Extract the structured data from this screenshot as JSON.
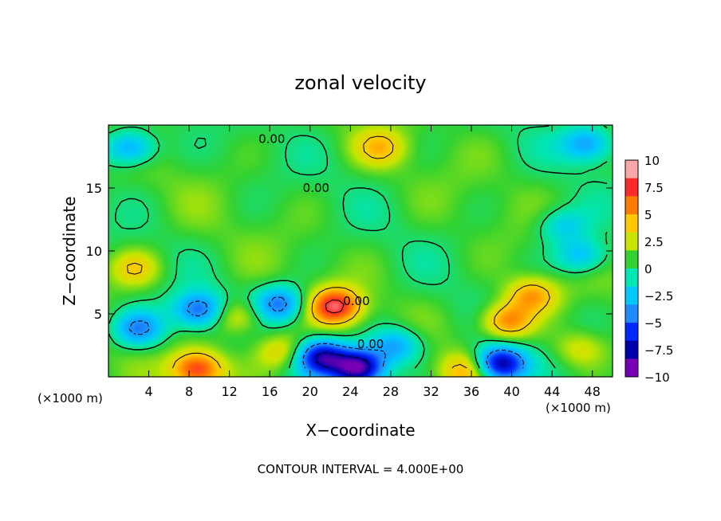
{
  "chart_data": {
    "type": "heatmap",
    "title": "zonal velocity",
    "xlabel": "X−coordinate",
    "ylabel": "Z−coordinate",
    "x_unit_left": "(×1000 m)",
    "x_unit_right": "(×1000 m)",
    "footer": "CONTOUR INTERVAL = 4.000E+00",
    "xlim": [
      0,
      50
    ],
    "ylim": [
      0,
      20
    ],
    "x_ticks": [
      4,
      8,
      12,
      16,
      20,
      24,
      28,
      32,
      36,
      40,
      44,
      48
    ],
    "x_tick_labels": [
      "4",
      "8",
      "12",
      "16",
      "20",
      "24",
      "28",
      "32",
      "36",
      "40",
      "44",
      "48"
    ],
    "y_ticks": [
      5,
      10,
      15
    ],
    "y_tick_labels": [
      "5",
      "10",
      "15"
    ],
    "colorbar": {
      "range": [
        -10,
        10
      ],
      "ticks": [
        10,
        7.5,
        5,
        2.5,
        0,
        -2.5,
        -5,
        -7.5,
        -10
      ],
      "labels": [
        "10",
        "7.5",
        "5",
        "2.5",
        "0",
        "−2.5",
        "−5",
        "−7.5",
        "−10"
      ],
      "colors": [
        "#f8a8a8",
        "#ff2a2a",
        "#ff7a00",
        "#ffc800",
        "#c8e600",
        "#32d232",
        "#00e6b4",
        "#00c8ff",
        "#1e8cff",
        "#0028ff",
        "#0000aa",
        "#7800b4"
      ]
    },
    "contour_labels": [
      {
        "text": "0.00",
        "x": 16.2,
        "y": 18.9
      },
      {
        "text": "0.00",
        "x": 20.6,
        "y": 15.0
      },
      {
        "text": "0.00",
        "x": 24.6,
        "y": 6.0
      },
      {
        "text": "0.00",
        "x": 26.0,
        "y": 2.6
      }
    ],
    "features": [
      {
        "label": "background",
        "x": 25,
        "y": 10,
        "value": 0.8
      },
      {
        "label": "max",
        "x": 22.5,
        "y": 5.6,
        "value": 8.5
      },
      {
        "label": "max",
        "x": 8.8,
        "y": 0.6,
        "value": 7.8
      },
      {
        "label": "max",
        "x": 39.5,
        "y": 4.4,
        "value": 6.5
      },
      {
        "label": "max",
        "x": 2.6,
        "y": 8.6,
        "value": 4.0
      },
      {
        "label": "max",
        "x": 12.8,
        "y": 4.8,
        "value": 4.5
      },
      {
        "label": "max",
        "x": 17.2,
        "y": 2.0,
        "value": 4.5
      },
      {
        "label": "max",
        "x": 46.8,
        "y": 2.2,
        "value": 3.5
      },
      {
        "label": "max",
        "x": 27.0,
        "y": 18.2,
        "value": 4.0
      },
      {
        "label": "max",
        "x": 42.0,
        "y": 6.5,
        "value": 5.5
      },
      {
        "label": "max",
        "x": 35.5,
        "y": 0.5,
        "value": 5.0
      },
      {
        "label": "min",
        "x": 24.8,
        "y": 0.7,
        "value": -10.0
      },
      {
        "label": "min",
        "x": 38.8,
        "y": 1.0,
        "value": -9.0
      },
      {
        "label": "min",
        "x": 21.0,
        "y": 1.6,
        "value": -7.5
      },
      {
        "label": "min",
        "x": 9.0,
        "y": 5.3,
        "value": -5.5
      },
      {
        "label": "min",
        "x": 17.0,
        "y": 5.8,
        "value": -5.0
      },
      {
        "label": "min",
        "x": 2.2,
        "y": 18.2,
        "value": -4.5
      },
      {
        "label": "min",
        "x": 47.5,
        "y": 18.5,
        "value": -4.0
      },
      {
        "label": "min",
        "x": 3.0,
        "y": 3.8,
        "value": -4.5
      },
      {
        "label": "min",
        "x": 47.0,
        "y": 9.6,
        "value": -3.5
      },
      {
        "label": "min",
        "x": 28.5,
        "y": 2.5,
        "value": -4.0
      },
      {
        "label": "min",
        "x": 45.0,
        "y": 12.0,
        "value": -2.5
      }
    ]
  }
}
